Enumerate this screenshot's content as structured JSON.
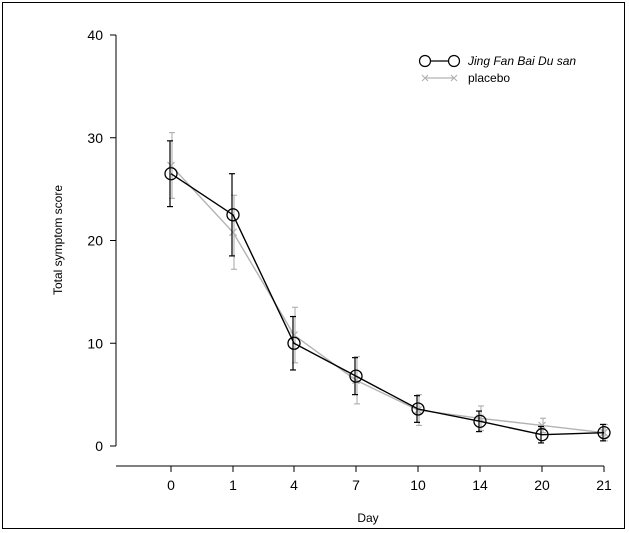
{
  "chart_data": {
    "type": "line",
    "title": "",
    "xlabel": "Day",
    "ylabel": "Total symptom score",
    "categories": [
      "0",
      "1",
      "4",
      "7",
      "10",
      "14",
      "20",
      "21"
    ],
    "ylim": [
      0,
      40
    ],
    "yticks": [
      "0",
      "10",
      "20",
      "30",
      "40"
    ],
    "grid": false,
    "legend_position": "top-right",
    "series": [
      {
        "name": "Jing Fan Bai Du san",
        "marker": "circle",
        "color": "#000000",
        "values": [
          26.5,
          22.5,
          10.0,
          6.8,
          3.6,
          2.4,
          1.1,
          1.3
        ],
        "error": [
          3.2,
          4.0,
          2.6,
          1.8,
          1.3,
          1.0,
          0.8,
          0.8
        ]
      },
      {
        "name": "placebo",
        "marker": "x",
        "color": "#b3b3b3",
        "values": [
          27.3,
          20.8,
          10.8,
          6.4,
          3.5,
          2.7,
          2.0,
          1.3
        ],
        "error": [
          3.2,
          3.6,
          2.7,
          2.3,
          1.5,
          1.2,
          0.7,
          0.8
        ]
      }
    ]
  }
}
